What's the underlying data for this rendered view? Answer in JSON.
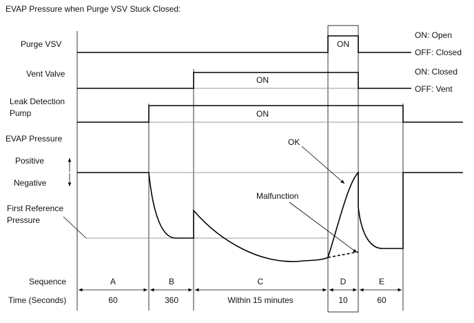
{
  "title": "EVAP Pressure when Purge VSV Stuck Closed:",
  "signals": [
    {
      "label": [
        "Purge VSV"
      ],
      "on": "ON",
      "states": [
        "ON: Open",
        "OFF: Closed"
      ]
    },
    {
      "label": [
        "Vent Valve"
      ],
      "on": "ON",
      "states": [
        "ON: Closed",
        "OFF: Vent"
      ]
    },
    {
      "label": [
        "Leak Detection",
        "Pump"
      ],
      "on": "ON"
    }
  ],
  "pressure": {
    "label": "EVAP Pressure",
    "positive": "Positive",
    "negative": "Negative",
    "reference": [
      "First Reference",
      "Pressure"
    ],
    "ok": "OK",
    "malfunction": "Malfunction"
  },
  "rows": {
    "sequence_label": "Sequence",
    "time_label": "Time (Seconds)",
    "sequence": [
      "A",
      "B",
      "C",
      "D",
      "E"
    ],
    "time": [
      "60",
      "360",
      "Within 15 minutes",
      "10",
      "60"
    ]
  }
}
